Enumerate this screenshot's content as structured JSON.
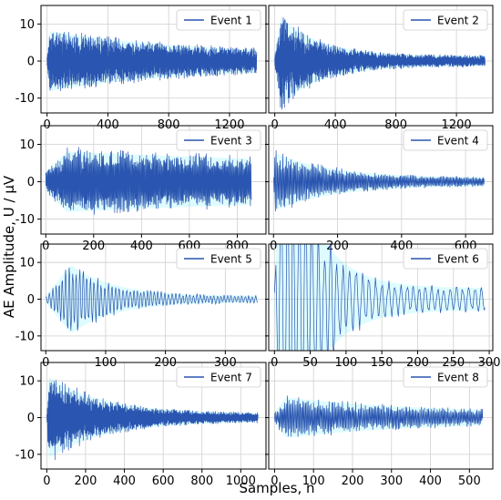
{
  "figure": {
    "ylabel": "AE Amplitude, U / μV",
    "xlabel": "Samples, n"
  },
  "chart_data": [
    {
      "type": "line",
      "legend": "Event 1",
      "legend_position": "top-right",
      "grid": true,
      "xlim": [
        -40,
        1440
      ],
      "ylim": [
        -14,
        15
      ],
      "xticks": [
        0,
        400,
        800,
        1200
      ],
      "yticks": [
        -10,
        0,
        10
      ],
      "n": 1380,
      "peak_amp": 9.5,
      "peak_at": 20,
      "decay": 900,
      "floor": 2.0,
      "period": 3.2,
      "seed": 11,
      "series": [
        {
          "name": "Event 1",
          "color": "#2a55b0",
          "envelope_color": "#00e5ff"
        }
      ]
    },
    {
      "type": "line",
      "legend": "Event 2",
      "legend_position": "top-right",
      "grid": true,
      "xlim": [
        -40,
        1440
      ],
      "ylim": [
        -14,
        15
      ],
      "xticks": [
        0,
        400,
        800,
        1200
      ],
      "yticks": [
        -10,
        0,
        10
      ],
      "n": 1390,
      "peak_amp": 14,
      "peak_at": 40,
      "decay": 260,
      "floor": 1.6,
      "period": 3.2,
      "seed": 23,
      "series": [
        {
          "name": "Event 2",
          "color": "#2a55b0",
          "envelope_color": "#00e5ff"
        }
      ]
    },
    {
      "type": "line",
      "legend": "Event 3",
      "legend_position": "top-right",
      "grid": true,
      "xlim": [
        -20,
        920
      ],
      "ylim": [
        -14,
        15
      ],
      "xticks": [
        0,
        200,
        400,
        600,
        800
      ],
      "yticks": [
        -10,
        0,
        10
      ],
      "n": 860,
      "peak_amp": 9.5,
      "peak_at": 90,
      "decay": 1800,
      "floor": 3.0,
      "period": 4.0,
      "seed": 37,
      "series": [
        {
          "name": "Event 3",
          "color": "#2a55b0",
          "envelope_color": "#00e5ff"
        }
      ]
    },
    {
      "type": "line",
      "legend": "Event 4",
      "legend_position": "top-right",
      "grid": true,
      "xlim": [
        -15,
        685
      ],
      "ylim": [
        -14,
        15
      ],
      "xticks": [
        0,
        200,
        400,
        600
      ],
      "yticks": [
        -10,
        0,
        10
      ],
      "n": 660,
      "peak_amp": 9,
      "peak_at": 5,
      "decay": 180,
      "floor": 1.2,
      "period": 4.0,
      "seed": 41,
      "series": [
        {
          "name": "Event 4",
          "color": "#2a55b0",
          "envelope_color": "#00e5ff"
        }
      ]
    },
    {
      "type": "line",
      "legend": "Event 5",
      "legend_position": "top-right",
      "grid": true,
      "xlim": [
        -8,
        368
      ],
      "ylim": [
        -14,
        15
      ],
      "xticks": [
        0,
        100,
        200,
        300
      ],
      "yticks": [
        -10,
        0,
        10
      ],
      "n": 355,
      "peak_amp": 11,
      "peak_at": 42,
      "decay": 70,
      "floor": 1.0,
      "period": 6.0,
      "seed": 53,
      "series": [
        {
          "name": "Event 5",
          "color": "#2a55b0",
          "envelope_color": "#00e5ff"
        }
      ]
    },
    {
      "type": "line",
      "legend": "Event 6",
      "legend_position": "top-right",
      "grid": true,
      "xlim": [
        -8,
        305
      ],
      "ylim": [
        -14,
        15
      ],
      "xticks": [
        0,
        50,
        100,
        150,
        200,
        250,
        300
      ],
      "yticks": [
        -10,
        0,
        10
      ],
      "n": 295,
      "peak_amp": 60,
      "peak_at": 10,
      "decay": 45,
      "floor": 3.5,
      "period": 9.0,
      "seed": 67,
      "series": [
        {
          "name": "Event 6",
          "color": "#2a55b0",
          "envelope_color": "#00e5ff"
        }
      ]
    },
    {
      "type": "line",
      "legend": "Event 7",
      "legend_position": "top-right",
      "grid": true,
      "xlim": [
        -30,
        1130
      ],
      "ylim": [
        -14,
        15
      ],
      "xticks": [
        0,
        200,
        400,
        600,
        800,
        1000
      ],
      "yticks": [
        -10,
        0,
        10
      ],
      "n": 1090,
      "peak_amp": 13,
      "peak_at": 10,
      "decay": 280,
      "floor": 1.3,
      "period": 3.5,
      "seed": 79,
      "series": [
        {
          "name": "Event 7",
          "color": "#2a55b0",
          "envelope_color": "#00e5ff"
        }
      ]
    },
    {
      "type": "line",
      "legend": "Event 8",
      "legend_position": "top-right",
      "grid": true,
      "xlim": [
        -15,
        560
      ],
      "ylim": [
        -14,
        15
      ],
      "xticks": [
        0,
        100,
        200,
        300,
        400,
        500
      ],
      "yticks": [
        -10,
        0,
        10
      ],
      "n": 535,
      "peak_amp": 6.5,
      "peak_at": 30,
      "decay": 320,
      "floor": 1.5,
      "period": 3.5,
      "seed": 83,
      "series": [
        {
          "name": "Event 8",
          "color": "#2a55b0",
          "envelope_color": "#00e5ff"
        }
      ]
    }
  ]
}
